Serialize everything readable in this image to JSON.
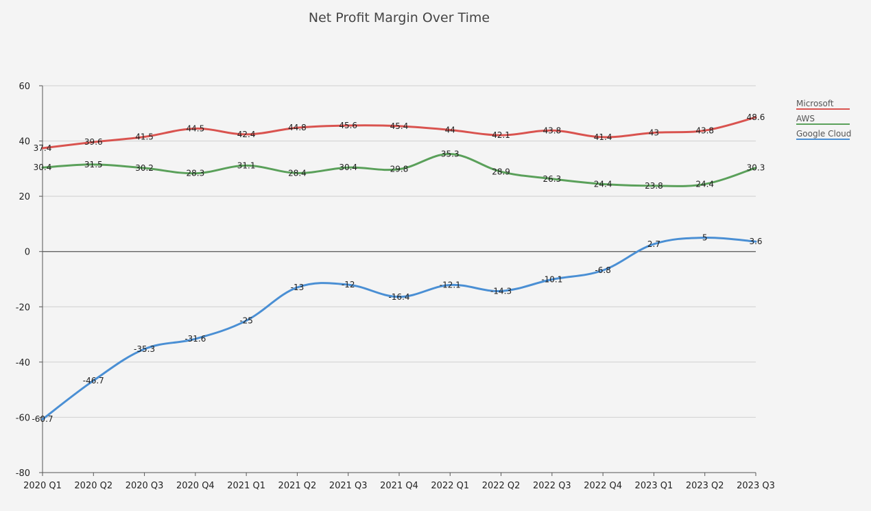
{
  "chart_data": {
    "type": "line",
    "title": "Net Profit Margin Over Time",
    "xlabel": "",
    "ylabel": "",
    "categories": [
      "2020 Q1",
      "2020 Q2",
      "2020 Q3",
      "2020 Q4",
      "2021 Q1",
      "2021 Q2",
      "2021 Q3",
      "2021 Q4",
      "2022 Q1",
      "2022 Q2",
      "2022 Q3",
      "2022 Q4",
      "2023 Q1",
      "2023 Q2",
      "2023 Q3"
    ],
    "ylim": [
      -80,
      60
    ],
    "yticks": [
      "-80",
      "-60",
      "-40",
      "-20",
      "0",
      "20",
      "40",
      "60"
    ],
    "grid": true,
    "legend_position": "right",
    "series": [
      {
        "name": "Microsoft",
        "color": "#d9534f",
        "values": [
          37.4,
          39.6,
          41.5,
          44.5,
          42.4,
          44.8,
          45.6,
          45.4,
          44,
          42.1,
          43.8,
          41.4,
          43,
          43.8,
          48.6
        ]
      },
      {
        "name": "AWS",
        "color": "#5aa05a",
        "values": [
          30.4,
          31.5,
          30.2,
          28.3,
          31.1,
          28.4,
          30.4,
          29.8,
          35.3,
          28.9,
          26.3,
          24.4,
          23.8,
          24.4,
          30.3
        ]
      },
      {
        "name": "Google Cloud",
        "color": "#4a8fd4",
        "values": [
          -60.7,
          -46.7,
          -35.3,
          -31.6,
          -25,
          -13,
          -12,
          -16.4,
          -12.1,
          -14.3,
          -10.1,
          -6.8,
          2.7,
          5,
          3.6
        ]
      }
    ]
  }
}
